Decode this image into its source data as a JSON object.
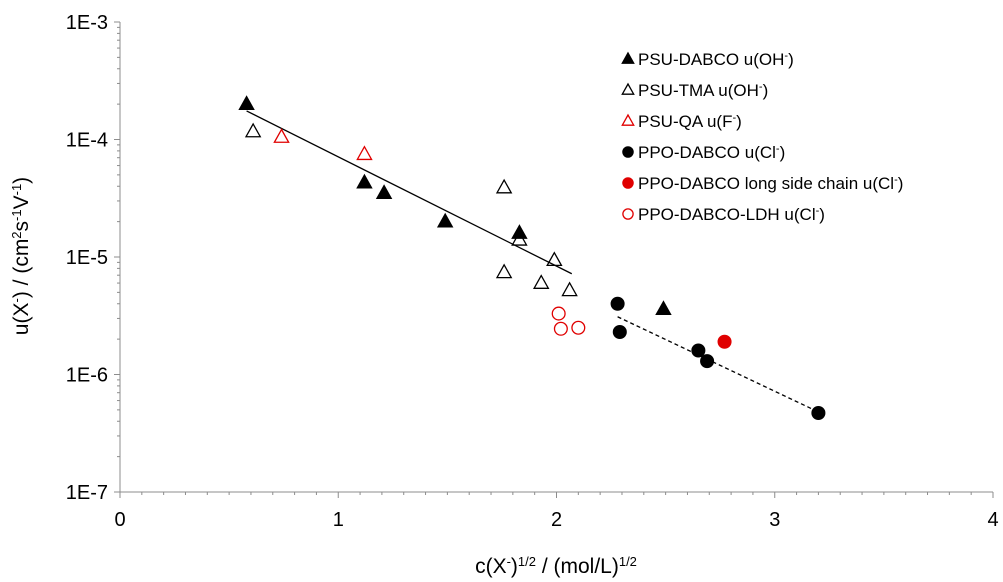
{
  "chart_data": {
    "type": "scatter",
    "x_scale": "linear",
    "y_scale": "log",
    "xlim": [
      0,
      4
    ],
    "ylim": [
      1e-07,
      0.001
    ],
    "x_ticks": [
      0,
      1,
      2,
      3,
      4
    ],
    "x_tick_labels": [
      "0",
      "1",
      "2",
      "3",
      "4"
    ],
    "y_ticks": [
      1e-07,
      1e-06,
      1e-05,
      0.0001,
      0.001
    ],
    "y_tick_labels": [
      "1E-7",
      "1E-6",
      "1E-5",
      "1E-4",
      "1E-3"
    ],
    "xlabel": {
      "base": "c(X",
      "sup1": "-",
      "mid": ")",
      "sup2": "1/2",
      "rest": " / (mol/L)",
      "sup3": "1/2"
    },
    "ylabel": {
      "a": "u(X",
      "a_sup": "-",
      "b": ") / (cm",
      "b_sup": "2",
      "c": "s",
      "c_sup": "-1",
      "d": "V",
      "d_sup": "-1",
      "e": ")"
    },
    "grid": false,
    "legend_position": "top-right",
    "series": [
      {
        "name": "PSU-DABCO",
        "legend_suffix": "u(OH",
        "legend_sup": "-",
        "legend_close": ")",
        "marker": "triangle",
        "fill": "#000000",
        "stroke": "#000000",
        "points": [
          [
            0.58,
            0.0002
          ],
          [
            1.12,
            4.3e-05
          ],
          [
            1.21,
            3.5e-05
          ],
          [
            1.49,
            2e-05
          ],
          [
            1.83,
            1.6e-05
          ],
          [
            2.49,
            3.6e-06
          ]
        ]
      },
      {
        "name": "PSU-TMA",
        "legend_suffix": "u(OH",
        "legend_sup": "-",
        "legend_close": ")",
        "marker": "triangle",
        "fill": "none",
        "stroke": "#000000",
        "points": [
          [
            0.61,
            0.000117
          ],
          [
            1.76,
            3.9e-05
          ],
          [
            1.83,
            1.4e-05
          ],
          [
            1.76,
            7.4e-06
          ],
          [
            1.99,
            9.4e-06
          ],
          [
            1.93,
            6e-06
          ],
          [
            2.06,
            5.2e-06
          ]
        ]
      },
      {
        "name": "PSU-QA",
        "legend_suffix": "u(F",
        "legend_sup": "-",
        "legend_close": ")",
        "marker": "triangle",
        "fill": "none",
        "stroke": "#e00000",
        "points": [
          [
            0.74,
            0.000105
          ],
          [
            1.12,
            7.5e-05
          ]
        ]
      },
      {
        "name": "PPO-DABCO",
        "legend_suffix": "u(Cl",
        "legend_sup": "-",
        "legend_close": ")",
        "marker": "circle",
        "fill": "#000000",
        "stroke": "#000000",
        "points": [
          [
            2.28,
            4e-06
          ],
          [
            2.29,
            2.3e-06
          ],
          [
            2.65,
            1.6e-06
          ],
          [
            2.69,
            1.3e-06
          ],
          [
            3.2,
            4.7e-07
          ]
        ]
      },
      {
        "name": "PPO-DABCO long side chain",
        "legend_suffix": "u(Cl",
        "legend_sup": "-",
        "legend_close": ")",
        "marker": "circle",
        "fill": "#e00000",
        "stroke": "#e00000",
        "points": [
          [
            2.77,
            1.9e-06
          ]
        ]
      },
      {
        "name": "PPO-DABCO-LDH",
        "legend_suffix": "u(Cl",
        "legend_sup": "-",
        "legend_close": ")",
        "marker": "circle",
        "fill": "none",
        "stroke": "#e00000",
        "points": [
          [
            2.01,
            3.3e-06
          ],
          [
            2.02,
            2.45e-06
          ],
          [
            2.1,
            2.5e-06
          ]
        ]
      }
    ],
    "trendlines": [
      {
        "style": "solid",
        "color": "#000000",
        "from": [
          0.58,
          0.000175
        ],
        "to": [
          2.07,
          7.2e-06
        ]
      },
      {
        "style": "dashed",
        "color": "#000000",
        "from": [
          2.28,
          3.1e-06
        ],
        "to": [
          3.2,
          4.8e-07
        ]
      }
    ]
  }
}
